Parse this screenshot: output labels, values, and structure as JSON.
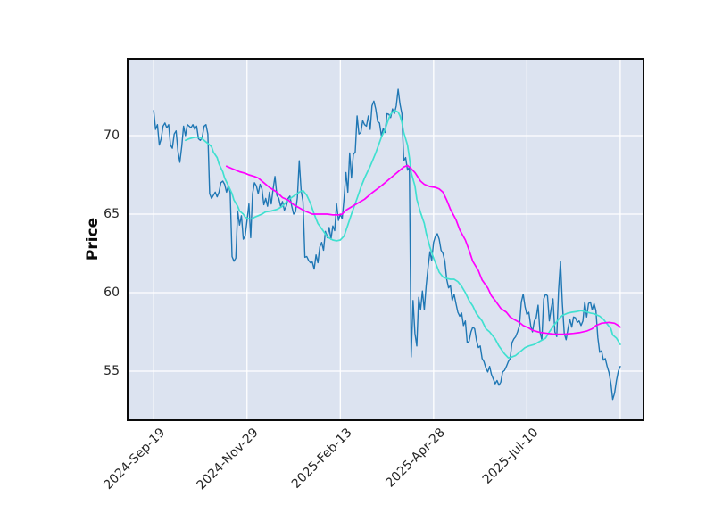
{
  "styles": {
    "figure_bg": "#ffffff",
    "plot_bg": "#dce3f0",
    "grid_color": "#ffffff",
    "spine_color": "#0a0a0a",
    "tick_label_color": "#262626",
    "price_color": "#1f77b4",
    "ma_fast_color": "#40e0d0",
    "ma_slow_color": "#ff00ff"
  },
  "chart_data": {
    "type": "line",
    "title": "",
    "xlabel": "",
    "ylabel": "Price",
    "grid": true,
    "legend": "none",
    "x_unit": "trading-day index, daily data (ticks every 50 trading days)",
    "x_range": [
      -13.5,
      262
    ],
    "y_range": [
      51.93,
      74.83
    ],
    "x_ticks": {
      "days": [
        0,
        50,
        100,
        150,
        200,
        250
      ],
      "labels": [
        "2024-Sep-19",
        "2024-Nov-29",
        "2025-Feb-13",
        "2025-Apr-28",
        "2025-Jul-10",
        ""
      ]
    },
    "y_ticks": [
      55,
      60,
      65,
      70
    ],
    "series": [
      {
        "name": "price",
        "color": "#1f77b4",
        "width": 1.4,
        "x_start": 0,
        "x_step": 1,
        "values": [
          71.6,
          70.4,
          70.7,
          69.4,
          69.8,
          70.6,
          70.8,
          70.5,
          70.7,
          69.4,
          69.2,
          70.1,
          70.3,
          69.0,
          68.3,
          69.3,
          70.6,
          70.0,
          70.7,
          70.6,
          70.5,
          70.7,
          70.4,
          70.6,
          69.8,
          69.7,
          69.9,
          70.6,
          70.7,
          70.1,
          66.3,
          66.0,
          66.2,
          66.4,
          66.1,
          66.4,
          67.0,
          67.1,
          66.9,
          66.4,
          66.8,
          66.4,
          62.3,
          62.0,
          62.2,
          65.2,
          64.3,
          64.9,
          63.4,
          63.6,
          64.6,
          65.65,
          63.5,
          66.3,
          67.0,
          66.8,
          66.3,
          66.9,
          66.6,
          65.6,
          66.0,
          65.5,
          66.4,
          65.65,
          66.6,
          67.4,
          66.2,
          66.0,
          65.5,
          65.8,
          65.25,
          65.5,
          66.0,
          66.15,
          65.5,
          65.0,
          65.15,
          66.05,
          68.4,
          66.5,
          65.8,
          62.25,
          62.3,
          62.05,
          61.9,
          61.95,
          61.5,
          62.4,
          61.9,
          62.9,
          63.2,
          62.7,
          63.9,
          63.5,
          64.15,
          63.4,
          64.25,
          63.95,
          65.65,
          64.6,
          65.0,
          64.7,
          66.0,
          67.65,
          66.4,
          68.9,
          67.3,
          68.8,
          68.95,
          71.25,
          70.1,
          70.2,
          70.95,
          70.7,
          70.6,
          71.25,
          70.4,
          71.9,
          72.2,
          71.7,
          70.9,
          70.8,
          70.0,
          70.45,
          70.2,
          71.4,
          71.35,
          71.15,
          71.7,
          71.4,
          71.9,
          72.95,
          72.0,
          71.4,
          68.4,
          68.6,
          67.8,
          68.0,
          55.9,
          59.5,
          57.4,
          56.6,
          59.7,
          58.9,
          60.1,
          58.9,
          60.45,
          61.6,
          62.6,
          62.05,
          63.2,
          63.6,
          63.75,
          63.4,
          62.7,
          62.5,
          62.0,
          60.85,
          60.3,
          60.45,
          59.5,
          59.9,
          59.3,
          58.75,
          58.5,
          58.7,
          57.9,
          58.2,
          56.8,
          56.9,
          57.5,
          57.8,
          57.7,
          56.95,
          56.5,
          56.6,
          55.8,
          55.6,
          55.2,
          54.95,
          55.3,
          54.8,
          54.5,
          54.2,
          54.4,
          54.1,
          54.3,
          54.95,
          55.05,
          55.3,
          55.6,
          55.8,
          56.8,
          57.05,
          57.2,
          57.5,
          57.9,
          59.4,
          59.9,
          59.1,
          58.6,
          58.75,
          57.9,
          57.5,
          58.2,
          58.4,
          59.2,
          57.5,
          57.0,
          59.6,
          59.9,
          59.8,
          58.2,
          59.0,
          59.6,
          57.5,
          57.2,
          60.2,
          62.0,
          59.3,
          57.4,
          57.0,
          57.7,
          58.3,
          57.8,
          58.45,
          58.4,
          58.1,
          58.2,
          57.9,
          58.2,
          59.4,
          58.45,
          59.3,
          59.4,
          58.9,
          59.3,
          58.85,
          57.15,
          56.2,
          56.3,
          55.7,
          55.8,
          55.3,
          54.9,
          54.2,
          53.2,
          53.6,
          54.4,
          55.0,
          55.3
        ]
      },
      {
        "name": "moving-average-fast-turquoise",
        "color": "#40e0d0",
        "width": 1.7,
        "points": [
          [
            17,
            69.7
          ],
          [
            19,
            69.8
          ],
          [
            22,
            69.9
          ],
          [
            25,
            69.9
          ],
          [
            27,
            69.7
          ],
          [
            29,
            69.5
          ],
          [
            31,
            69.3
          ],
          [
            32,
            68.95
          ],
          [
            34,
            68.6
          ],
          [
            35,
            68.2
          ],
          [
            37,
            67.7
          ],
          [
            38,
            67.3
          ],
          [
            40,
            66.8
          ],
          [
            42,
            66.3
          ],
          [
            43,
            65.9
          ],
          [
            45,
            65.5
          ],
          [
            46,
            65.2
          ],
          [
            48,
            65.0
          ],
          [
            49,
            64.8
          ],
          [
            51,
            64.7
          ],
          [
            53,
            64.7
          ],
          [
            54,
            64.8
          ],
          [
            56,
            64.9
          ],
          [
            58,
            65.0
          ],
          [
            60,
            65.15
          ],
          [
            63,
            65.2
          ],
          [
            66,
            65.3
          ],
          [
            69,
            65.5
          ],
          [
            72,
            65.9
          ],
          [
            75,
            66.15
          ],
          [
            78,
            66.4
          ],
          [
            80,
            66.5
          ],
          [
            82,
            66.2
          ],
          [
            84,
            65.7
          ],
          [
            86,
            65.0
          ],
          [
            88,
            64.4
          ],
          [
            91,
            63.9
          ],
          [
            93,
            63.55
          ],
          [
            96,
            63.35
          ],
          [
            98,
            63.3
          ],
          [
            100,
            63.35
          ],
          [
            102,
            63.6
          ],
          [
            104,
            64.3
          ],
          [
            106,
            65.0
          ],
          [
            109,
            66.0
          ],
          [
            111,
            66.7
          ],
          [
            113,
            67.3
          ],
          [
            116,
            68.05
          ],
          [
            119,
            68.9
          ],
          [
            122,
            69.9
          ],
          [
            124,
            70.4
          ],
          [
            126,
            71.1
          ],
          [
            127,
            71.35
          ],
          [
            128,
            71.5
          ],
          [
            129,
            71.6
          ],
          [
            131,
            71.5
          ],
          [
            132,
            71.25
          ],
          [
            133,
            70.85
          ],
          [
            134,
            70.2
          ],
          [
            136,
            69.4
          ],
          [
            137,
            68.6
          ],
          [
            138,
            67.65
          ],
          [
            140,
            66.8
          ],
          [
            141,
            65.95
          ],
          [
            143,
            65.1
          ],
          [
            145,
            64.4
          ],
          [
            146,
            63.8
          ],
          [
            148,
            62.9
          ],
          [
            150,
            62.2
          ],
          [
            151,
            61.9
          ],
          [
            153,
            61.3
          ],
          [
            155,
            61.0
          ],
          [
            157,
            60.9
          ],
          [
            159,
            60.85
          ],
          [
            161,
            60.85
          ],
          [
            163,
            60.7
          ],
          [
            165,
            60.4
          ],
          [
            167,
            60.0
          ],
          [
            169,
            59.5
          ],
          [
            171,
            59.15
          ],
          [
            173,
            58.65
          ],
          [
            176,
            58.2
          ],
          [
            178,
            57.7
          ],
          [
            180,
            57.5
          ],
          [
            183,
            57.05
          ],
          [
            185,
            56.6
          ],
          [
            188,
            56.1
          ],
          [
            190,
            55.85
          ],
          [
            192,
            55.9
          ],
          [
            194,
            56.0
          ],
          [
            197,
            56.3
          ],
          [
            199,
            56.5
          ],
          [
            201,
            56.6
          ],
          [
            204,
            56.7
          ],
          [
            207,
            56.9
          ],
          [
            210,
            57.1
          ],
          [
            212,
            57.5
          ],
          [
            215,
            58.0
          ],
          [
            217,
            58.3
          ],
          [
            219,
            58.55
          ],
          [
            222,
            58.7
          ],
          [
            224,
            58.75
          ],
          [
            227,
            58.8
          ],
          [
            229,
            58.85
          ],
          [
            231,
            58.8
          ],
          [
            234,
            58.7
          ],
          [
            236,
            58.65
          ],
          [
            239,
            58.5
          ],
          [
            241,
            58.3
          ],
          [
            243,
            58.0
          ],
          [
            245,
            57.7
          ],
          [
            246,
            57.3
          ],
          [
            248,
            57.1
          ],
          [
            249,
            56.9
          ],
          [
            250,
            56.7
          ]
        ]
      },
      {
        "name": "moving-average-slow-magenta",
        "color": "#ff00ff",
        "width": 1.7,
        "points": [
          [
            39,
            68.05
          ],
          [
            42,
            67.9
          ],
          [
            44,
            67.8
          ],
          [
            46,
            67.7
          ],
          [
            49,
            67.6
          ],
          [
            51,
            67.5
          ],
          [
            54,
            67.4
          ],
          [
            56,
            67.3
          ],
          [
            59,
            67.0
          ],
          [
            62,
            66.7
          ],
          [
            66,
            66.4
          ],
          [
            69,
            66.05
          ],
          [
            72,
            65.9
          ],
          [
            75,
            65.6
          ],
          [
            78,
            65.4
          ],
          [
            81,
            65.2
          ],
          [
            85,
            65.0
          ],
          [
            89,
            65.0
          ],
          [
            93,
            65.0
          ],
          [
            96,
            64.95
          ],
          [
            99,
            64.95
          ],
          [
            101,
            65.0
          ],
          [
            103,
            65.25
          ],
          [
            108,
            65.6
          ],
          [
            113,
            65.95
          ],
          [
            117,
            66.35
          ],
          [
            122,
            66.8
          ],
          [
            127,
            67.3
          ],
          [
            132,
            67.8
          ],
          [
            134,
            68.0
          ],
          [
            136,
            68.1
          ],
          [
            138,
            67.9
          ],
          [
            140,
            67.65
          ],
          [
            143,
            67.1
          ],
          [
            145,
            66.9
          ],
          [
            148,
            66.75
          ],
          [
            151,
            66.7
          ],
          [
            153,
            66.6
          ],
          [
            155,
            66.4
          ],
          [
            157,
            65.9
          ],
          [
            159,
            65.3
          ],
          [
            162,
            64.65
          ],
          [
            164,
            64.0
          ],
          [
            167,
            63.35
          ],
          [
            169,
            62.7
          ],
          [
            171,
            62.0
          ],
          [
            174,
            61.4
          ],
          [
            176,
            60.8
          ],
          [
            179,
            60.3
          ],
          [
            181,
            59.8
          ],
          [
            183,
            59.5
          ],
          [
            186,
            59.0
          ],
          [
            189,
            58.75
          ],
          [
            191,
            58.45
          ],
          [
            193,
            58.3
          ],
          [
            196,
            58.1
          ],
          [
            198,
            57.9
          ],
          [
            201,
            57.75
          ],
          [
            203,
            57.6
          ],
          [
            206,
            57.5
          ],
          [
            208,
            57.45
          ],
          [
            211,
            57.4
          ],
          [
            215,
            57.35
          ],
          [
            220,
            57.35
          ],
          [
            225,
            57.4
          ],
          [
            228,
            57.45
          ],
          [
            232,
            57.55
          ],
          [
            235,
            57.7
          ],
          [
            237,
            57.9
          ],
          [
            240,
            58.05
          ],
          [
            244,
            58.1
          ],
          [
            247,
            58.05
          ],
          [
            249,
            57.9
          ],
          [
            250,
            57.8
          ]
        ]
      }
    ]
  }
}
